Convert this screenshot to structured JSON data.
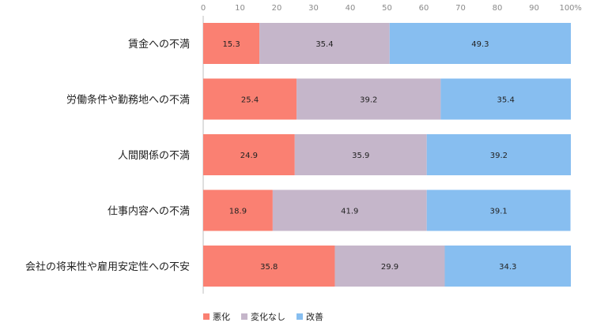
{
  "chart_data": {
    "type": "bar",
    "orientation": "horizontal",
    "stacked": true,
    "categories": [
      "賃金への不満",
      "労働条件や勤務地への不満",
      "人間関係の不満",
      "仕事内容への不満",
      "会社の将来性や雇用安定性への不安"
    ],
    "series": [
      {
        "name": "悪化",
        "color": "#fa8072",
        "values": [
          15.3,
          25.4,
          24.9,
          18.9,
          35.8
        ]
      },
      {
        "name": "変化なし",
        "color": "#c5b6ca",
        "values": [
          35.4,
          39.2,
          35.9,
          41.9,
          29.9
        ]
      },
      {
        "name": "改善",
        "color": "#87bef0",
        "values": [
          49.3,
          35.4,
          39.2,
          39.1,
          34.3
        ]
      }
    ],
    "xticks": [
      0,
      10,
      20,
      30,
      40,
      50,
      60,
      70,
      80,
      90,
      100
    ],
    "xunit": "%",
    "xlim": [
      0,
      100
    ],
    "title": "",
    "xlabel": "",
    "ylabel": "",
    "grid": false,
    "legend": "bottom-left"
  }
}
